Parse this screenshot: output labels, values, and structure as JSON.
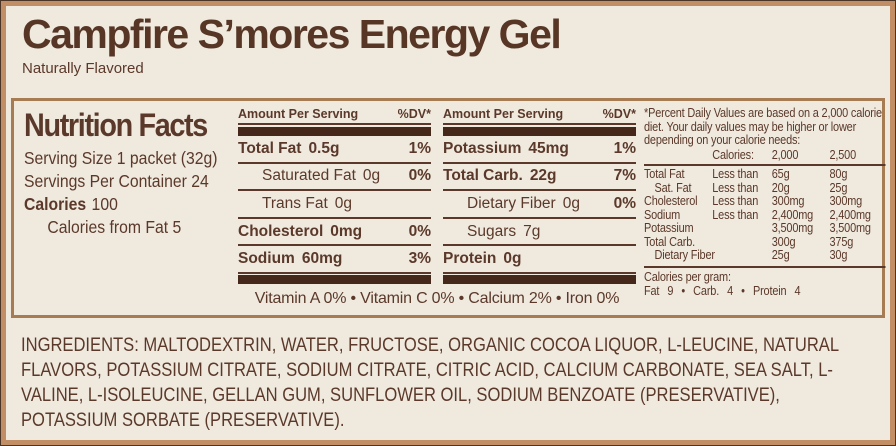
{
  "header": {
    "title": "Campfire S’mores Energy Gel",
    "subtitle": "Naturally Flavored"
  },
  "colors": {
    "background": "#efe9de",
    "frame_tan": "#c28e66",
    "panel_border": "#a87c52",
    "text_brown": "#5b392a",
    "bar_brown": "#46281a"
  },
  "nutrition": {
    "title": "Nutrition Facts",
    "serving_size": "Serving Size 1 packet (32g)",
    "servings_per_container": "Servings Per Container 24",
    "calories_label": "Calories",
    "calories_value": "100",
    "calories_from_fat": "Calories from Fat  5",
    "amount_header": "Amount Per Serving",
    "dv_header": "%DV*",
    "col1_rows": [
      {
        "label": "Total Fat",
        "value": "0.5g",
        "dv": "1%"
      },
      {
        "label": "Saturated Fat",
        "value": "0g",
        "dv": "0%"
      },
      {
        "label": "Trans Fat",
        "value": "0g",
        "dv": ""
      },
      {
        "label": "Cholesterol",
        "value": "0mg",
        "dv": "0%"
      },
      {
        "label": "Sodium",
        "value": "60mg",
        "dv": "3%"
      }
    ],
    "col2_rows": [
      {
        "label": "Potassium",
        "value": "45mg",
        "dv": "1%"
      },
      {
        "label": "Total Carb.",
        "value": "22g",
        "dv": "7%"
      },
      {
        "label": "Dietary Fiber",
        "value": "0g",
        "dv": "0%"
      },
      {
        "label": "Sugars",
        "value": "7g",
        "dv": ""
      },
      {
        "label": "Protein",
        "value": "0g",
        "dv": ""
      }
    ],
    "vitamins_line": "Vitamin A 0% • Vitamin C 0% • Calcium 2% • Iron 0%",
    "footnote": {
      "text": "*Percent Daily Values are based on a 2,000 calorie diet. Your daily values may be higher or lower depending on your calorie needs:",
      "header": {
        "calories_label": "Calories:",
        "c2000": "2,000",
        "c2500": "2,500"
      },
      "rows": [
        {
          "label": "Total Fat",
          "qualifier": "Less than",
          "v2000": "65g",
          "v2500": "80g"
        },
        {
          "label": "Sat. Fat",
          "qualifier": "Less than",
          "v2000": "20g",
          "v2500": "25g"
        },
        {
          "label": "Cholesterol",
          "qualifier": "Less than",
          "v2000": "300mg",
          "v2500": "300mg"
        },
        {
          "label": "Sodium",
          "qualifier": "Less than",
          "v2000": "2,400mg",
          "v2500": "2,400mg"
        },
        {
          "label": "Potassium",
          "qualifier": "",
          "v2000": "3,500mg",
          "v2500": "3,500mg"
        },
        {
          "label": "Total Carb.",
          "qualifier": "",
          "v2000": "300g",
          "v2500": "375g"
        },
        {
          "label": "Dietary Fiber",
          "qualifier": "",
          "v2000": "25g",
          "v2500": "30g"
        }
      ],
      "calories_per_gram_label": "Calories per gram:",
      "calories_per_gram_line": "Fat 9 • Carb. 4 • Protein 4"
    }
  },
  "ingredients": "INGREDIENTS: MALTODEXTRIN, WATER, FRUCTOSE, ORGANIC COCOA LIQUOR, L-LEUCINE, NATURAL FLAVORS, POTASSIUM CITRATE, SODIUM CITRATE, CITRIC ACID, CALCIUM CARBONATE, SEA SALT, L-VALINE, L-ISOLEUCINE, GELLAN GUM, SUNFLOWER OIL, SODIUM BENZOATE (PRESERVATIVE), POTASSIUM SORBATE (PRESERVATIVE)."
}
